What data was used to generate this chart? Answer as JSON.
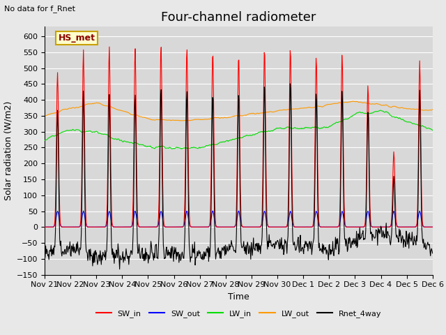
{
  "title": "Four-channel radiometer",
  "top_left_text": "No data for f_Rnet",
  "ylabel": "Solar radiation (W/m2)",
  "xlabel": "Time",
  "legend_box_label": "HS_met",
  "legend_box_color": "#c8a000",
  "legend_box_bg": "#ffffcc",
  "ylim": [
    -150,
    630
  ],
  "yticks": [
    -150,
    -100,
    -50,
    0,
    50,
    100,
    150,
    200,
    250,
    300,
    350,
    400,
    450,
    500,
    550,
    600
  ],
  "x_tick_labels": [
    "Nov 21",
    "Nov 22",
    "Nov 23",
    "Nov 24",
    "Nov 25",
    "Nov 26",
    "Nov 27",
    "Nov 28",
    "Nov 29",
    "Nov 30",
    "Dec 1",
    "Dec 2",
    "Dec 3",
    "Dec 4",
    "Dec 5",
    "Dec 6"
  ],
  "colors": {
    "SW_in": "#ff0000",
    "SW_out": "#0000ff",
    "LW_in": "#00dd00",
    "LW_out": "#ff9900",
    "Rnet_4way": "#000000"
  },
  "background_color": "#e8e8e8",
  "plot_bg_color": "#d8d8d8",
  "grid_color": "#ffffff",
  "title_fontsize": 13,
  "axis_label_fontsize": 9,
  "tick_fontsize": 8
}
